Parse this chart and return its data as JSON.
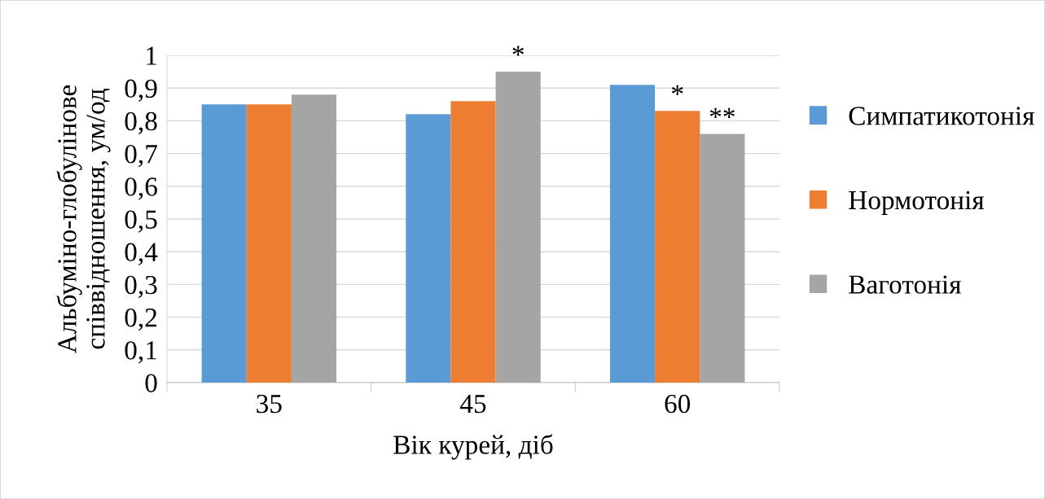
{
  "chart_data": {
    "type": "bar",
    "xlabel": "Вік курей, діб",
    "ylabel": "Альбуміно-глобулінове співвідношення, ум/од",
    "categories": [
      "35",
      "45",
      "60"
    ],
    "series": [
      {
        "name": "Симпатикотонія",
        "color": "#5b9bd5",
        "values": [
          0.85,
          0.82,
          0.91
        ]
      },
      {
        "name": "Нормотонія",
        "color": "#ed7d31",
        "values": [
          0.85,
          0.86,
          0.83
        ],
        "value_labels": [
          null,
          null,
          "*"
        ]
      },
      {
        "name": "Ваготонія",
        "color": "#a5a5a5",
        "values": [
          0.88,
          0.95,
          0.76
        ],
        "value_labels": [
          null,
          "*",
          "**"
        ]
      }
    ],
    "ylim": [
      0,
      1
    ],
    "yticks": [
      0,
      {
        "value": 0.1,
        "label": "0,1"
      },
      {
        "value": 0.2,
        "label": "0,2"
      },
      {
        "value": 0.3,
        "label": "0,3"
      },
      {
        "value": 0.4,
        "label": "0,4"
      },
      {
        "value": 0.5,
        "label": "0,5"
      },
      {
        "value": 0.6,
        "label": "0,6"
      },
      {
        "value": 0.7,
        "label": "0,7"
      },
      {
        "value": 0.8,
        "label": "0,8"
      },
      {
        "value": 0.9,
        "label": "0,9"
      },
      1
    ],
    "grid": "y",
    "legend": "right"
  }
}
